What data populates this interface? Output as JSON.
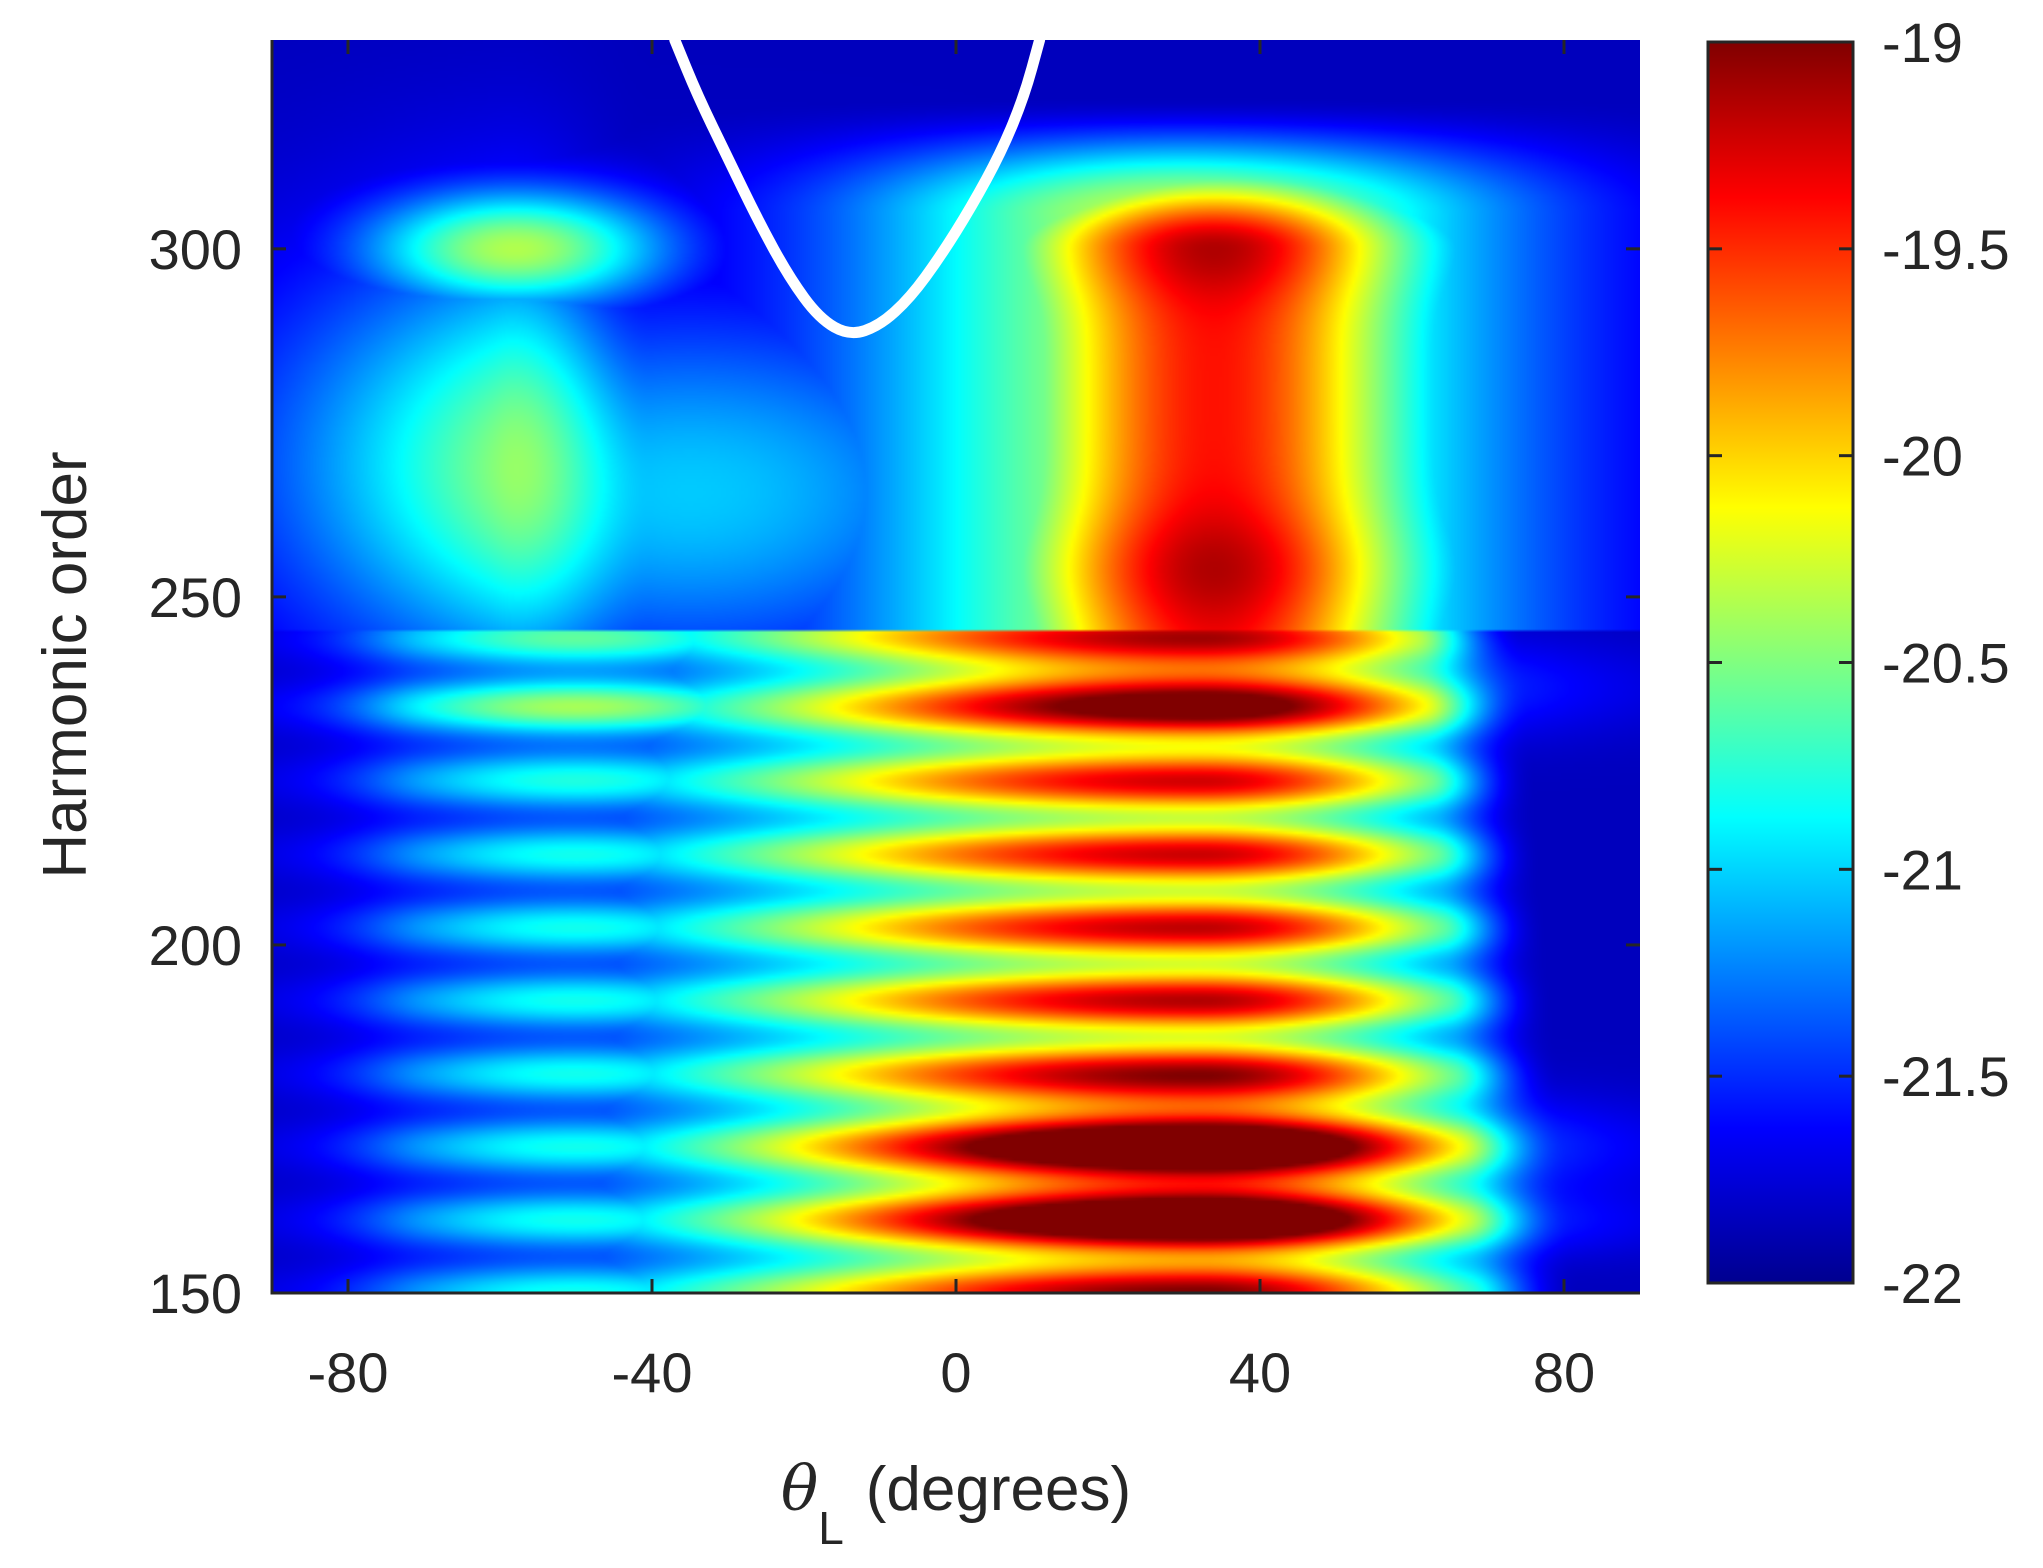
{
  "chart_data": {
    "type": "heatmap",
    "title": "",
    "xlabel": {
      "symbol": "θ",
      "subscript": "L",
      "text": "(degrees)"
    },
    "ylabel": "Harmonic order",
    "xlim": [
      -90,
      90
    ],
    "ylim": [
      150,
      330
    ],
    "xticks": [
      -80,
      -40,
      0,
      40,
      80
    ],
    "xtick_labels": [
      "-80",
      "-40",
      "0",
      "40",
      "80"
    ],
    "yticks": [
      150,
      200,
      250,
      300
    ],
    "ytick_labels": [
      "150",
      "200",
      "250",
      "300"
    ],
    "colorbar": {
      "range": [
        -22,
        -19
      ],
      "ticks": [
        -22,
        -21.5,
        -21,
        -20.5,
        -20,
        -19.5,
        -19
      ],
      "tick_labels": [
        "-22",
        "-21.5",
        "-21",
        "-20.5",
        "-20",
        "-19.5",
        "-19"
      ],
      "colormap": "jet"
    },
    "grid": false,
    "intensity_features": [
      {
        "theta": 35,
        "order": 172,
        "value": -19.0
      },
      {
        "theta": 35,
        "order": 160,
        "value": -19.1
      },
      {
        "theta": 35,
        "order": 237,
        "value": -19.2
      },
      {
        "theta": 35,
        "order": 300,
        "value": -19.5
      },
      {
        "theta": 35,
        "order": 255,
        "value": -19.5
      },
      {
        "theta": -58,
        "order": 300,
        "value": -20.8
      },
      {
        "theta": -50,
        "order": 237,
        "value": -21.0
      },
      {
        "theta": -10,
        "order": 305,
        "value": -21.8
      }
    ],
    "overlay_curve": {
      "color": "#ffffff",
      "points": [
        [
          -37,
          330
        ],
        [
          -34,
          322
        ],
        [
          -30,
          313
        ],
        [
          -26,
          304
        ],
        [
          -22,
          296
        ],
        [
          -18,
          290
        ],
        [
          -14,
          287.5
        ],
        [
          -10,
          289
        ],
        [
          -6,
          293
        ],
        [
          -2,
          299
        ],
        [
          2,
          306
        ],
        [
          6,
          314
        ],
        [
          9,
          322
        ],
        [
          11,
          330
        ]
      ]
    }
  }
}
